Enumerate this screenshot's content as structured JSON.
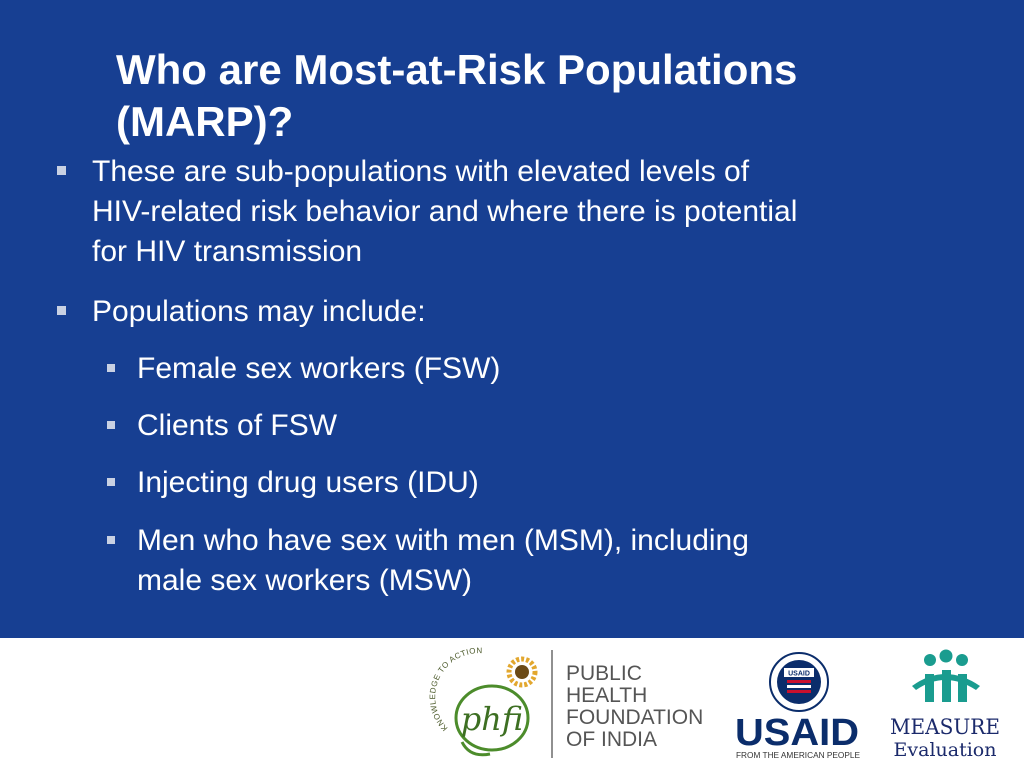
{
  "slide": {
    "title_line1": "Who are Most-at-Risk Populations",
    "title_line2": "(MARP)?",
    "bullets": [
      {
        "level": 1,
        "lines": [
          "These are sub-populations with elevated levels of",
          "HIV-related risk behavior and where there is potential",
          "for HIV transmission"
        ]
      },
      {
        "level": 1,
        "lines": [
          "Populations may include:"
        ]
      },
      {
        "level": 2,
        "lines": [
          "Female sex workers (FSW)"
        ]
      },
      {
        "level": 2,
        "lines": [
          "Clients of FSW"
        ]
      },
      {
        "level": 2,
        "lines": [
          "Injecting drug users (IDU)"
        ]
      },
      {
        "level": 2,
        "lines": [
          "Men who have sex with men (MSM), including",
          "male sex workers (MSW)"
        ]
      }
    ]
  },
  "footer": {
    "phfi": {
      "arc_text": "KNOWLEDGE TO ACTION",
      "mark": "phfi",
      "name_lines": [
        "PUBLIC",
        "HEALTH",
        "FOUNDATION",
        "OF INDIA"
      ]
    },
    "usaid": {
      "seal_text": "USAID",
      "wordmark": "USAID",
      "tagline": "FROM THE AMERICAN PEOPLE"
    },
    "measure": {
      "line1": "MEASURE",
      "line2": "Evaluation"
    }
  },
  "colors": {
    "background": "#173f92",
    "text": "#ffffff",
    "bullet_marker": "#c9d1e3",
    "usaid_red": "#c8102e",
    "usaid_blue": "#0b2d6b",
    "measure_teal": "#1a9c8f",
    "measure_navy": "#1b2a6b",
    "phfi_green": "#4c8c2b",
    "phfi_gold": "#e2a72e"
  }
}
